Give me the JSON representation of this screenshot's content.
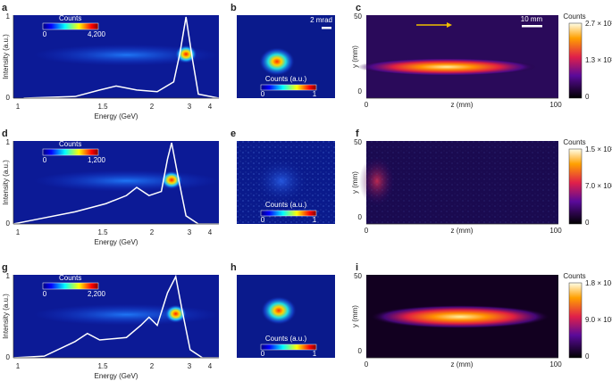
{
  "panels": [
    {
      "label": "a",
      "ylabel": "Intensity (a.u.)",
      "xlabel": "Energy (GeV)",
      "yticks": [
        "0",
        "1"
      ],
      "xticks": [
        "1",
        "1.5",
        "2",
        "3",
        "4"
      ],
      "colorbar_title": "Counts",
      "colorbar_ticks": [
        "0",
        "4,200"
      ]
    },
    {
      "label": "b",
      "scalebar": "2 mrad",
      "colorbar_title": "Counts (a.u.)",
      "colorbar_ticks": [
        "0",
        "1"
      ]
    },
    {
      "label": "c",
      "ylabel": "y (mm)",
      "xlabel": "z (mm)",
      "yticks": [
        "0",
        "50"
      ],
      "xticks": [
        "0",
        "100"
      ],
      "scalebar": "10 mm",
      "colorbar_title": "Counts",
      "colorbar_ticks": [
        "0",
        "1.3 × 10³",
        "2.7 × 10³"
      ]
    },
    {
      "label": "d",
      "ylabel": "Intensity (a.u.)",
      "xlabel": "Energy (GeV)",
      "yticks": [
        "0",
        "1"
      ],
      "xticks": [
        "1",
        "1.5",
        "2",
        "3",
        "4"
      ],
      "colorbar_title": "Counts",
      "colorbar_ticks": [
        "0",
        "1,200"
      ]
    },
    {
      "label": "e",
      "colorbar_title": "Counts (a.u.)",
      "colorbar_ticks": [
        "0",
        "1"
      ]
    },
    {
      "label": "f",
      "ylabel": "y (mm)",
      "xlabel": "z (mm)",
      "yticks": [
        "0",
        "50"
      ],
      "xticks": [
        "0",
        "100"
      ],
      "colorbar_title": "Counts",
      "colorbar_ticks": [
        "0",
        "7.0 × 10²",
        "1.5 × 10³"
      ]
    },
    {
      "label": "g",
      "ylabel": "Intensity (a.u.)",
      "xlabel": "Energy (GeV)",
      "yticks": [
        "0",
        "1"
      ],
      "xticks": [
        "1",
        "1.5",
        "2",
        "3",
        "4"
      ],
      "colorbar_title": "Counts",
      "colorbar_ticks": [
        "0",
        "2,200"
      ]
    },
    {
      "label": "h",
      "colorbar_title": "Counts (a.u.)",
      "colorbar_ticks": [
        "0",
        "1"
      ]
    },
    {
      "label": "i",
      "ylabel": "y (mm)",
      "xlabel": "z (mm)",
      "yticks": [
        "0",
        "50"
      ],
      "xticks": [
        "0",
        "100"
      ],
      "colorbar_title": "Counts",
      "colorbar_ticks": [
        "0",
        "9.0 × 10³",
        "1.8 × 10⁴"
      ]
    }
  ]
}
